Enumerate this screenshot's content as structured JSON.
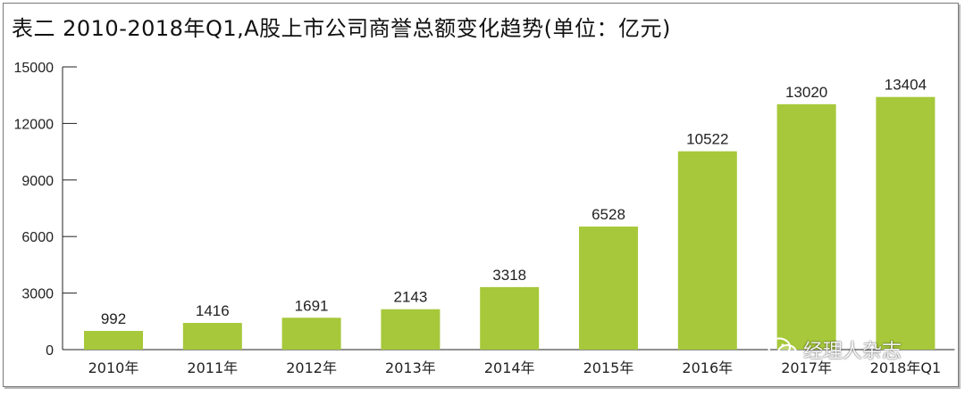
{
  "chart_data": {
    "type": "bar",
    "title": "表二  2010-2018年Q1,A股上市公司商誉总额变化趋势(单位：亿元)",
    "categories": [
      "2010年",
      "2011年",
      "2012年",
      "2013年",
      "2014年",
      "2015年",
      "2016年",
      "2017年",
      "2018年Q1"
    ],
    "values": [
      992,
      1416,
      1691,
      2143,
      3318,
      6528,
      10522,
      13020,
      13404
    ],
    "data_labels": [
      "992",
      "1416",
      "1691",
      "2143",
      "3318",
      "6528",
      "10522",
      "13020",
      "13404"
    ],
    "ylim": [
      0,
      15000
    ],
    "yticks": [
      0,
      3000,
      6000,
      9000,
      12000,
      15000
    ],
    "ytick_labels": [
      "0",
      "3000",
      "6000",
      "9000",
      "12000",
      "15000"
    ],
    "xlabel": "",
    "ylabel": "",
    "grid": false,
    "bar_color": "#a6c83a"
  },
  "watermark": {
    "text": "经理人杂志",
    "icon": "wechat-icon"
  }
}
